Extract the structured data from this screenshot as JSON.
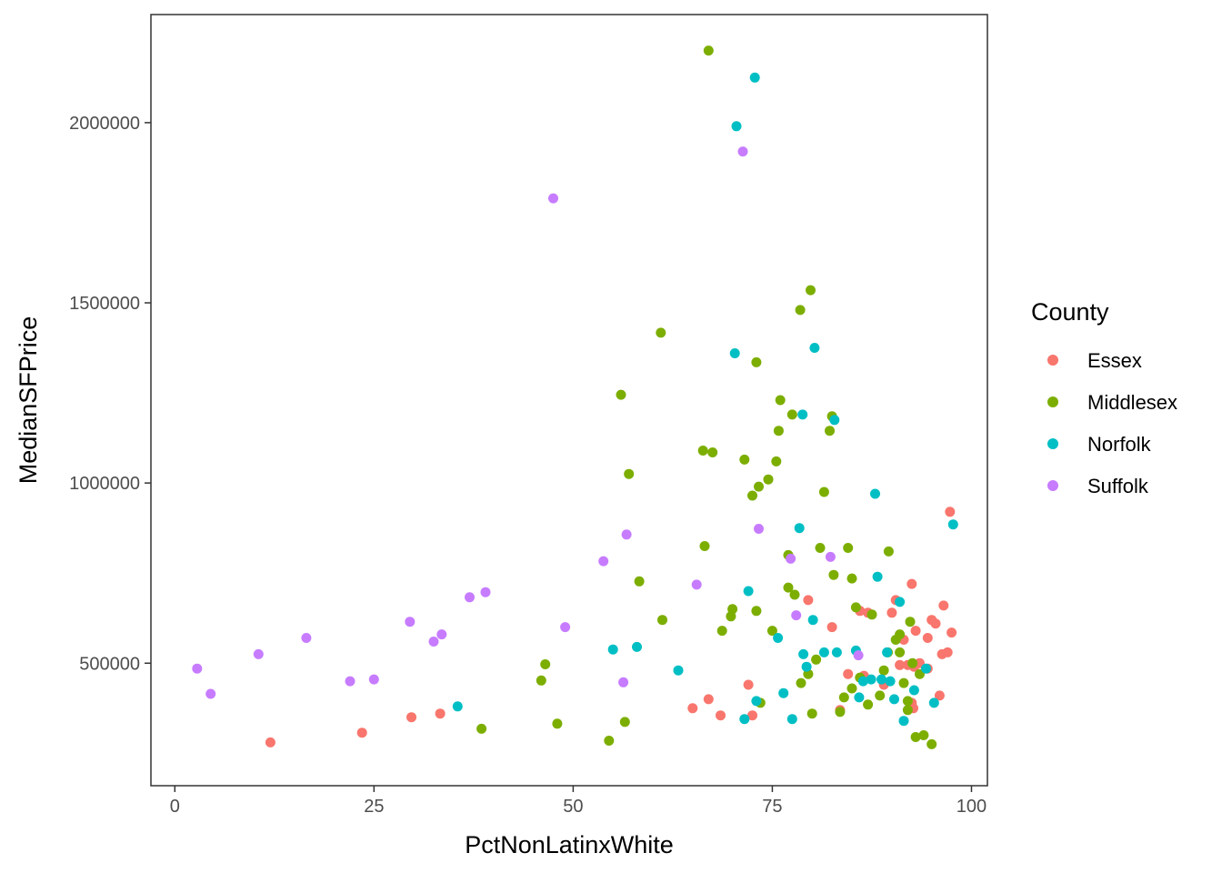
{
  "chart_data": {
    "type": "scatter",
    "xlabel": "PctNonLatinxWhite",
    "ylabel": "MedianSFPrice",
    "xlim": [
      -3,
      102
    ],
    "ylim": [
      160000,
      2300000
    ],
    "x_ticks": [
      0,
      25,
      50,
      75,
      100
    ],
    "x_tick_labels": [
      "0",
      "25",
      "50",
      "75",
      "100"
    ],
    "y_ticks": [
      500000,
      1000000,
      1500000,
      2000000
    ],
    "y_tick_labels": [
      "500000",
      "1000000",
      "1500000",
      "2000000"
    ],
    "grid": false,
    "legend": {
      "title": "County",
      "placement": "right"
    },
    "series": [
      {
        "name": "Essex",
        "color": "#F8766D",
        "points": [
          [
            12,
            280000
          ],
          [
            23.5,
            307000
          ],
          [
            29.7,
            350000
          ],
          [
            33.3,
            360000
          ],
          [
            65,
            375000
          ],
          [
            67,
            400000
          ],
          [
            68.5,
            355000
          ],
          [
            72,
            440000
          ],
          [
            72.5,
            355000
          ],
          [
            79.5,
            675000
          ],
          [
            82.5,
            600000
          ],
          [
            83.5,
            370000
          ],
          [
            84.5,
            470000
          ],
          [
            86,
            645000
          ],
          [
            86.5,
            465000
          ],
          [
            87,
            640000
          ],
          [
            89,
            440000
          ],
          [
            90,
            640000
          ],
          [
            90.5,
            675000
          ],
          [
            91,
            495000
          ],
          [
            91.5,
            565000
          ],
          [
            92,
            495000
          ],
          [
            92.5,
            720000
          ],
          [
            92.5,
            390000
          ],
          [
            92.7,
            375000
          ],
          [
            92.8,
            490000
          ],
          [
            93,
            590000
          ],
          [
            93.5,
            500000
          ],
          [
            94.5,
            570000
          ],
          [
            94.5,
            485000
          ],
          [
            95,
            620000
          ],
          [
            95.5,
            610000
          ],
          [
            96,
            410000
          ],
          [
            96.3,
            525000
          ],
          [
            96.5,
            660000
          ],
          [
            97,
            530000
          ],
          [
            97.3,
            920000
          ],
          [
            97.5,
            585000
          ]
        ]
      },
      {
        "name": "Middlesex",
        "color": "#7CAE00",
        "points": [
          [
            38.5,
            318000
          ],
          [
            46,
            452000
          ],
          [
            46.5,
            497000
          ],
          [
            48,
            332000
          ],
          [
            54.5,
            285000
          ],
          [
            56,
            1245000
          ],
          [
            56.5,
            337000
          ],
          [
            57,
            1025000
          ],
          [
            58.3,
            727000
          ],
          [
            61,
            1417000
          ],
          [
            61.2,
            620000
          ],
          [
            66.3,
            1090000
          ],
          [
            66.5,
            825000
          ],
          [
            67,
            2200000
          ],
          [
            67.5,
            1085000
          ],
          [
            68.7,
            590000
          ],
          [
            69.8,
            630000
          ],
          [
            70,
            650000
          ],
          [
            71.5,
            1065000
          ],
          [
            72.5,
            965000
          ],
          [
            73,
            1335000
          ],
          [
            73,
            645000
          ],
          [
            73.3,
            990000
          ],
          [
            73.5,
            390000
          ],
          [
            74.5,
            1010000
          ],
          [
            75,
            590000
          ],
          [
            75.5,
            1060000
          ],
          [
            75.8,
            1145000
          ],
          [
            76,
            1230000
          ],
          [
            77,
            800000
          ],
          [
            77,
            710000
          ],
          [
            77.5,
            1190000
          ],
          [
            77.8,
            690000
          ],
          [
            78.5,
            1480000
          ],
          [
            78.6,
            445000
          ],
          [
            79.5,
            470000
          ],
          [
            79.8,
            1535000
          ],
          [
            80,
            360000
          ],
          [
            80.5,
            510000
          ],
          [
            81,
            820000
          ],
          [
            81.5,
            975000
          ],
          [
            82.2,
            1145000
          ],
          [
            82.5,
            1185000
          ],
          [
            82.7,
            745000
          ],
          [
            83.5,
            365000
          ],
          [
            84,
            405000
          ],
          [
            84.5,
            820000
          ],
          [
            85,
            735000
          ],
          [
            85,
            430000
          ],
          [
            85.5,
            655000
          ],
          [
            86,
            460000
          ],
          [
            87,
            385000
          ],
          [
            87.5,
            635000
          ],
          [
            88.5,
            410000
          ],
          [
            89,
            480000
          ],
          [
            89.5,
            530000
          ],
          [
            89.6,
            810000
          ],
          [
            90.5,
            565000
          ],
          [
            91,
            580000
          ],
          [
            91,
            530000
          ],
          [
            91.5,
            445000
          ],
          [
            92,
            395000
          ],
          [
            92,
            370000
          ],
          [
            92.3,
            615000
          ],
          [
            92.6,
            500000
          ],
          [
            93,
            295000
          ],
          [
            93.5,
            470000
          ],
          [
            94,
            300000
          ],
          [
            95,
            275000
          ]
        ]
      },
      {
        "name": "Norfolk",
        "color": "#00BFC4",
        "points": [
          [
            35.5,
            380000
          ],
          [
            55,
            538000
          ],
          [
            58,
            545000
          ],
          [
            63.2,
            480000
          ],
          [
            70.3,
            1360000
          ],
          [
            70.5,
            1990000
          ],
          [
            71.5,
            345000
          ],
          [
            72,
            700000
          ],
          [
            72.8,
            2125000
          ],
          [
            73,
            395000
          ],
          [
            75.7,
            570000
          ],
          [
            76.4,
            417000
          ],
          [
            77.5,
            345000
          ],
          [
            78.4,
            875000
          ],
          [
            78.8,
            1190000
          ],
          [
            78.9,
            525000
          ],
          [
            79.3,
            490000
          ],
          [
            80.1,
            620000
          ],
          [
            80.3,
            1375000
          ],
          [
            81.5,
            530000
          ],
          [
            82.8,
            1175000
          ],
          [
            83.1,
            530000
          ],
          [
            85.5,
            535000
          ],
          [
            85.9,
            405000
          ],
          [
            86.4,
            450000
          ],
          [
            87.4,
            455000
          ],
          [
            87.9,
            970000
          ],
          [
            88.2,
            740000
          ],
          [
            88.7,
            455000
          ],
          [
            89.4,
            530000
          ],
          [
            89.8,
            450000
          ],
          [
            90.3,
            400000
          ],
          [
            91,
            670000
          ],
          [
            91.5,
            340000
          ],
          [
            92.8,
            425000
          ],
          [
            94.3,
            485000
          ],
          [
            95.3,
            390000
          ],
          [
            97.7,
            885000
          ]
        ]
      },
      {
        "name": "Suffolk",
        "color": "#C77CFF",
        "points": [
          [
            2.8,
            485000
          ],
          [
            4.5,
            415000
          ],
          [
            10.5,
            525000
          ],
          [
            16.5,
            570000
          ],
          [
            22,
            450000
          ],
          [
            25,
            455000
          ],
          [
            29.5,
            615000
          ],
          [
            32.5,
            560000
          ],
          [
            33.5,
            580000
          ],
          [
            37,
            683000
          ],
          [
            39,
            697000
          ],
          [
            47.5,
            1790000
          ],
          [
            49,
            600000
          ],
          [
            53.8,
            783000
          ],
          [
            56.3,
            447000
          ],
          [
            56.7,
            857000
          ],
          [
            65.5,
            718000
          ],
          [
            71.3,
            1920000
          ],
          [
            73.3,
            873000
          ],
          [
            77.3,
            790000
          ],
          [
            78,
            633000
          ],
          [
            82.3,
            795000
          ],
          [
            85.8,
            522000
          ]
        ]
      }
    ]
  }
}
